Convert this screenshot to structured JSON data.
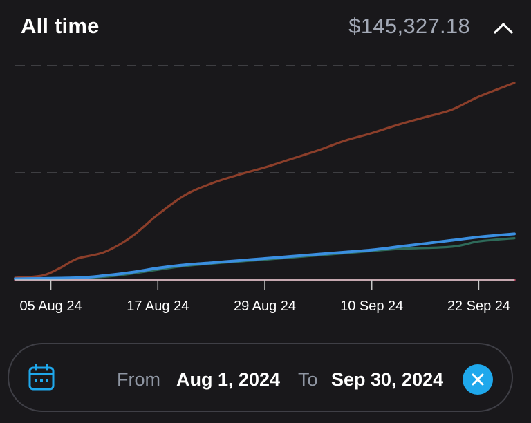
{
  "header": {
    "title": "All time",
    "total": "$145,327.18",
    "collapse_icon": "chevron-up-icon"
  },
  "chart_data": {
    "type": "line",
    "grid": "dashed horizontal",
    "legend": "none",
    "x_ticks": [
      "05 Aug 24",
      "17 Aug 24",
      "29 Aug 24",
      "10 Sep 24",
      "22 Sep 24"
    ],
    "x_range": [
      "2024-08-01",
      "2024-09-26"
    ],
    "y_range": [
      0,
      2
    ],
    "colors": {
      "line_growth": "#8b3e2a",
      "line_blue": "#3b8fe0",
      "line_teal": "#2e6a5a",
      "line_pink": "#c24a67",
      "grid": "#4a4a50",
      "axis": "#c8c8c8"
    },
    "series": [
      {
        "color": "#8b3e2a",
        "x": [
          "2024-08-01",
          "2024-08-04",
          "2024-08-06",
          "2024-08-08",
          "2024-08-11",
          "2024-08-14",
          "2024-08-17",
          "2024-08-20",
          "2024-08-23",
          "2024-08-26",
          "2024-08-29",
          "2024-09-01",
          "2024-09-04",
          "2024-09-07",
          "2024-09-10",
          "2024-09-13",
          "2024-09-16",
          "2024-09-19",
          "2024-09-22",
          "2024-09-26"
        ],
        "y": [
          0.02,
          0.04,
          0.11,
          0.2,
          0.26,
          0.4,
          0.61,
          0.79,
          0.9,
          0.98,
          1.05,
          1.13,
          1.21,
          1.3,
          1.37,
          1.45,
          1.52,
          1.59,
          1.71,
          1.84
        ]
      },
      {
        "color": "#3b8fe0",
        "x": [
          "2024-08-01",
          "2024-08-08",
          "2024-08-11",
          "2024-08-14",
          "2024-08-17",
          "2024-08-20",
          "2024-08-23",
          "2024-08-26",
          "2024-08-29",
          "2024-09-01",
          "2024-09-04",
          "2024-09-07",
          "2024-09-10",
          "2024-09-13",
          "2024-09-16",
          "2024-09-19",
          "2024-09-22",
          "2024-09-26"
        ],
        "y": [
          0.01,
          0.02,
          0.04,
          0.07,
          0.11,
          0.14,
          0.16,
          0.18,
          0.2,
          0.22,
          0.24,
          0.26,
          0.28,
          0.31,
          0.34,
          0.37,
          0.4,
          0.43
        ]
      },
      {
        "color": "#2e6a5a",
        "x": [
          "2024-08-01",
          "2024-08-11",
          "2024-08-20",
          "2024-08-29",
          "2024-09-07",
          "2024-09-13",
          "2024-09-19",
          "2024-09-22",
          "2024-09-26"
        ],
        "y": [
          0.01,
          0.03,
          0.13,
          0.19,
          0.25,
          0.29,
          0.31,
          0.36,
          0.39
        ]
      },
      {
        "color": "#c24a67",
        "x": [
          "2024-08-01",
          "2024-09-26"
        ],
        "y": [
          0.0,
          0.0
        ]
      }
    ]
  },
  "date_range": {
    "calendar_icon": "calendar-icon",
    "from_label": "From",
    "from_value": "Aug 1, 2024",
    "to_label": "To",
    "to_value": "Sep 30, 2024",
    "clear_icon": "close-icon"
  }
}
